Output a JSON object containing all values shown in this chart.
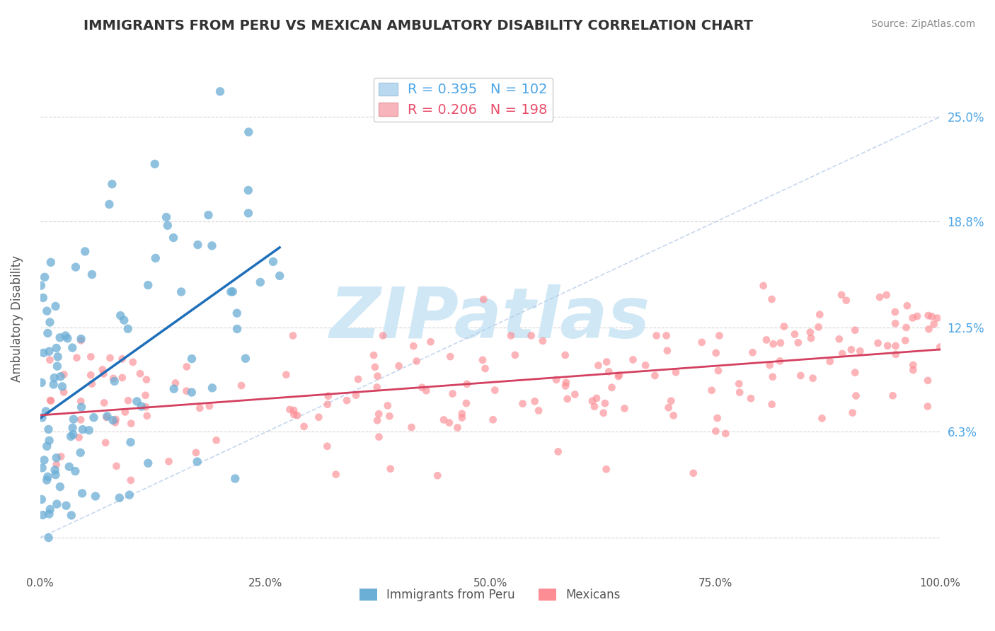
{
  "title": "IMMIGRANTS FROM PERU VS MEXICAN AMBULATORY DISABILITY CORRELATION CHART",
  "source": "Source: ZipAtlas.com",
  "xlabel": "",
  "ylabel": "Ambulatory Disability",
  "xlim": [
    0.0,
    100.0
  ],
  "ylim": [
    -2.0,
    28.0
  ],
  "yticks": [
    0.0,
    6.3,
    12.5,
    18.8,
    25.0
  ],
  "ytick_labels": [
    "",
    "6.3%",
    "12.5%",
    "18.8%",
    "25.0%"
  ],
  "xtick_labels": [
    "0.0%",
    "25.0%",
    "50.0%",
    "75.0%",
    "100.0%"
  ],
  "xticks": [
    0,
    25,
    50,
    75,
    100
  ],
  "peru_color": "#6baed6",
  "mexico_color": "#fc8d94",
  "peru_R": 0.395,
  "peru_N": 102,
  "mexico_R": 0.206,
  "mexico_N": 198,
  "background_color": "#ffffff",
  "grid_color": "#cccccc",
  "title_color": "#333333",
  "axis_label_color": "#555555",
  "legend_r_color_peru": "#4da6e8",
  "legend_r_color_mexico": "#e84d6b",
  "watermark_text": "ZIPatlas",
  "watermark_color": "#d0e8f5"
}
